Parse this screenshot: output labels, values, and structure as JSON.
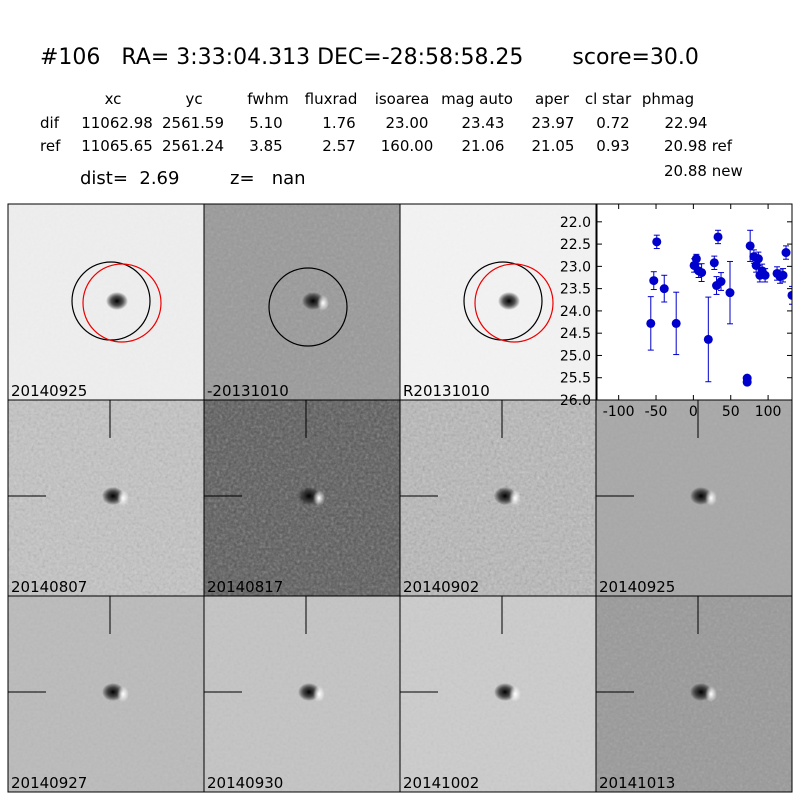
{
  "header": {
    "title": "#106   RA= 3:33:04.313 DEC=-28:58:58.25       score=30.0"
  },
  "table": {
    "columns": [
      "xc",
      "yc",
      "fwhm",
      "fluxrad",
      "isoarea",
      "mag auto",
      "aper",
      "cl star",
      "phmag"
    ],
    "rows": [
      {
        "label": "dif",
        "values": [
          "11062.98",
          "2561.59",
          "5.10",
          "1.76",
          "23.00",
          "23.43",
          "23.97",
          "0.72",
          "22.94"
        ]
      },
      {
        "label": "ref",
        "values": [
          "11065.65",
          "2561.24",
          "3.85",
          "2.57",
          "160.00",
          "21.06",
          "21.05",
          "0.93",
          "20.98 ref"
        ]
      }
    ],
    "extra": "20.88 new"
  },
  "dist": "dist=  2.69",
  "z": "z=   nan",
  "panels": [
    {
      "label": "20140925",
      "color": "#000000"
    },
    {
      "label": "-20131010",
      "color": "#000000"
    },
    {
      "label": "R20131010",
      "color": "#000000"
    },
    {
      "label": "20140807",
      "color": "#000000"
    },
    {
      "label": "20140817",
      "color": "#000000"
    },
    {
      "label": "20140902",
      "color": "#000000"
    },
    {
      "label": "20140925",
      "color": "#ff0000"
    },
    {
      "label": "20140927",
      "color": "#000000"
    },
    {
      "label": "20140930",
      "color": "#000000"
    },
    {
      "label": "20141002",
      "color": "#000000"
    },
    {
      "label": "20141013",
      "color": "#000000"
    }
  ],
  "chart_data": {
    "type": "errorbar",
    "color": "#0000cc",
    "x": [
      -57,
      -53,
      -49,
      -39,
      -23,
      1,
      4,
      7,
      11,
      20,
      28,
      31,
      33,
      37,
      49,
      72,
      72,
      76,
      81,
      84,
      87,
      89,
      92,
      96,
      112,
      116,
      120,
      124,
      132
    ],
    "values": [
      24.28,
      23.32,
      22.45,
      23.5,
      24.28,
      22.98,
      22.83,
      23.1,
      23.14,
      24.64,
      22.92,
      23.43,
      22.34,
      23.34,
      23.59,
      25.51,
      25.6,
      22.54,
      22.78,
      22.98,
      22.83,
      23.2,
      23.1,
      23.2,
      23.16,
      23.23,
      23.2,
      22.69,
      23.65
    ],
    "errors": [
      0.6,
      0.2,
      0.15,
      0.3,
      0.7,
      0.15,
      0.1,
      0.15,
      0.2,
      0.95,
      0.15,
      0.2,
      0.15,
      0.2,
      0.7,
      0.05,
      0.05,
      0.35,
      0.15,
      0.15,
      0.15,
      0.15,
      0.15,
      0.15,
      0.15,
      0.15,
      0.15,
      0.15,
      0.2
    ],
    "xlim": [
      -129,
      132
    ],
    "ylim": [
      26.0,
      21.6
    ],
    "xticks": [
      -100,
      -50,
      0,
      50,
      100
    ],
    "yticks": [
      {
        "value": 22,
        "label": "22.0"
      },
      {
        "value": 22.5,
        "label": "22.5"
      },
      {
        "value": 23,
        "label": "23.0"
      },
      {
        "value": 23.5,
        "label": "23.5"
      },
      {
        "value": 24,
        "label": "24.0"
      },
      {
        "value": 24.5,
        "label": "24.5"
      },
      {
        "value": 25,
        "label": "25.0"
      },
      {
        "value": 25.5,
        "label": "25.5"
      },
      {
        "value": 26,
        "label": "26.0"
      }
    ]
  }
}
